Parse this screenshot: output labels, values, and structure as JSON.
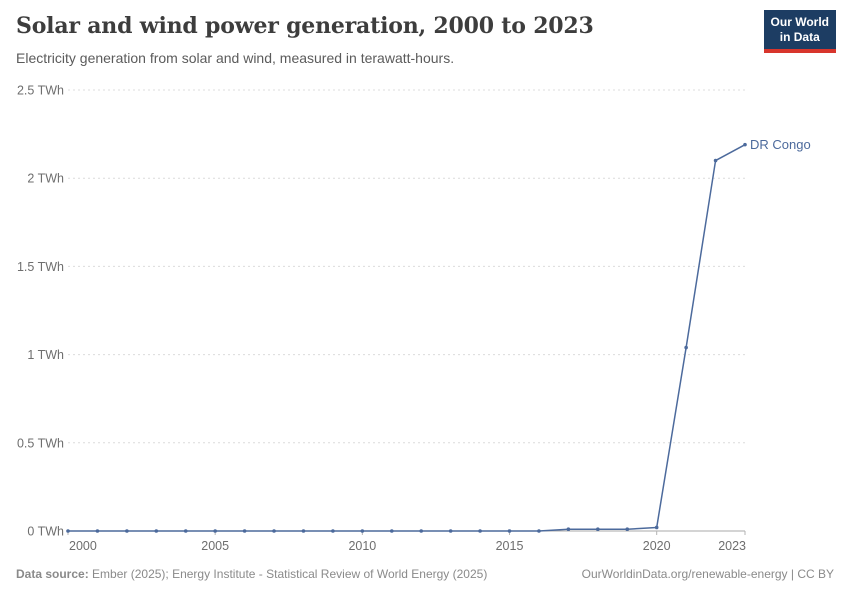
{
  "header": {
    "title": "Solar and wind power generation, 2000 to 2023",
    "subtitle": "Electricity generation from solar and wind, measured in terawatt-hours.",
    "logo": {
      "line1": "Our World",
      "line2": "in Data",
      "bg": "#1d3d63",
      "stripe": "#d8352c"
    }
  },
  "chart_data": {
    "type": "line",
    "title": "Solar and wind power generation, 2000 to 2023",
    "xlabel": "",
    "ylabel": "",
    "unit": "TWh",
    "grid": "horizontal-dashed",
    "legend_position": "end-of-line-label",
    "x": [
      2000,
      2001,
      2002,
      2003,
      2004,
      2005,
      2006,
      2007,
      2008,
      2009,
      2010,
      2011,
      2012,
      2013,
      2014,
      2015,
      2016,
      2017,
      2018,
      2019,
      2020,
      2021,
      2022,
      2023
    ],
    "series": [
      {
        "name": "DR Congo",
        "color": "#4c6a9c",
        "values": [
          0,
          0,
          0,
          0,
          0,
          0,
          0,
          0,
          0,
          0,
          0,
          0,
          0,
          0,
          0,
          0,
          0,
          0.01,
          0.01,
          0.01,
          0.02,
          1.04,
          2.1,
          2.19
        ]
      }
    ],
    "xlim": [
      2000,
      2023
    ],
    "ylim": [
      0,
      2.5
    ],
    "yticks": [
      {
        "value": 0,
        "label": "0 TWh"
      },
      {
        "value": 0.5,
        "label": "0.5 TWh"
      },
      {
        "value": 1,
        "label": "1 TWh"
      },
      {
        "value": 1.5,
        "label": "1.5 TWh"
      },
      {
        "value": 2,
        "label": "2 TWh"
      },
      {
        "value": 2.5,
        "label": "2.5 TWh"
      }
    ],
    "xticks": [
      {
        "value": 2000,
        "label": "2000"
      },
      {
        "value": 2005,
        "label": "2005"
      },
      {
        "value": 2010,
        "label": "2010"
      },
      {
        "value": 2015,
        "label": "2015"
      },
      {
        "value": 2020,
        "label": "2020"
      },
      {
        "value": 2023,
        "label": "2023"
      }
    ],
    "colors": {
      "line": "#4c6a9c",
      "grid": "#dcdcdc",
      "axis": "#a8a8a8",
      "tick": "#b3b3b3",
      "axis_text": "#6e6e6e"
    }
  },
  "footer": {
    "source_label": "Data source:",
    "source_text": "Ember (2025); Energy Institute - Statistical Review of World Energy (2025)",
    "right_text": "OurWorldinData.org/renewable-energy | CC BY"
  }
}
